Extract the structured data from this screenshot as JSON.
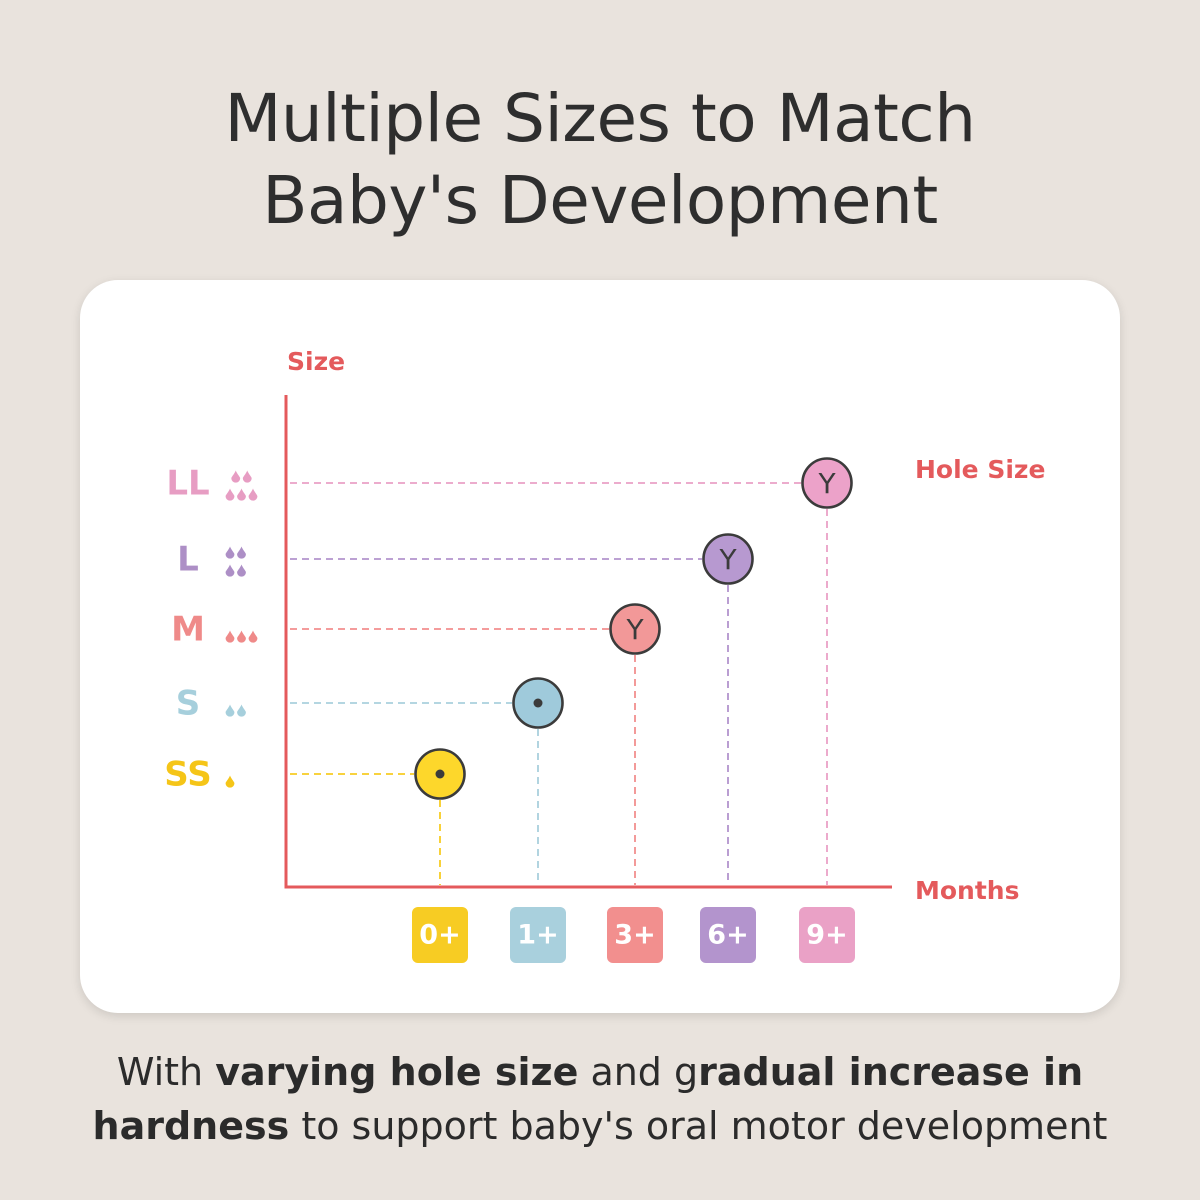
{
  "title": {
    "line1": "Multiple Sizes to Match",
    "line2": "Baby's Development"
  },
  "caption": {
    "part1": "With ",
    "bold1": "varying hole size",
    "part2": " and g",
    "bold2": "radual increase in",
    "bold3": "hardness",
    "part3": " to support baby's oral motor development"
  },
  "chart_data": {
    "type": "scatter",
    "ylabel": "Size",
    "xlabel": "Months",
    "series_label": "Hole Size",
    "y_categories": [
      {
        "label": "SS",
        "color": "#f5c518",
        "drops": 1,
        "drop_rows": [
          1
        ]
      },
      {
        "label": "S",
        "color": "#a6cfdc",
        "drops": 2,
        "drop_rows": [
          2
        ]
      },
      {
        "label": "M",
        "color": "#ef8a89",
        "drops": 3,
        "drop_rows": [
          3
        ]
      },
      {
        "label": "L",
        "color": "#ad8fc6",
        "drops": 4,
        "drop_rows": [
          2,
          2
        ]
      },
      {
        "label": "LL",
        "color": "#e79dc3",
        "drops": 5,
        "drop_rows": [
          2,
          3
        ]
      }
    ],
    "x_categories": [
      {
        "label": "0+",
        "color": "#f7cc23"
      },
      {
        "label": "1+",
        "color": "#a9d0dd"
      },
      {
        "label": "3+",
        "color": "#f28f8e"
      },
      {
        "label": "6+",
        "color": "#b394cd"
      },
      {
        "label": "9+",
        "color": "#eaa1c6"
      }
    ],
    "points": [
      {
        "x": "0+",
        "y": "SS",
        "hole": "dot",
        "fill": "#fdd72b"
      },
      {
        "x": "1+",
        "y": "S",
        "hole": "dot",
        "fill": "#9fcadb"
      },
      {
        "x": "3+",
        "y": "M",
        "hole": "Y",
        "fill": "#f29898"
      },
      {
        "x": "6+",
        "y": "L",
        "hole": "Y",
        "fill": "#b799d0"
      },
      {
        "x": "9+",
        "y": "LL",
        "hole": "Y",
        "fill": "#eca2c9"
      }
    ],
    "axis_color": "#e45a5c"
  }
}
